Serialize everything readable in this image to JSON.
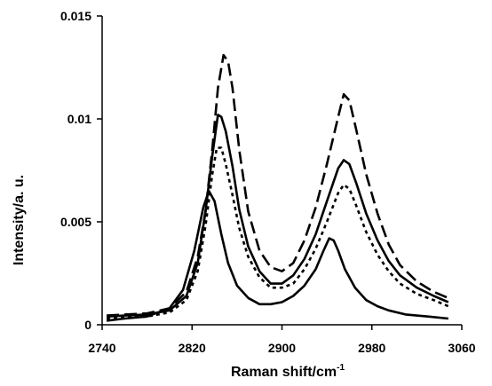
{
  "chart_data": {
    "type": "line",
    "xlabel": "Raman shift/cm",
    "xlabel_superscript": "-1",
    "ylabel": "Intensity/a. u.",
    "xlim": [
      2740,
      3060
    ],
    "ylim": [
      0,
      0.015
    ],
    "x_ticks": [
      "2740",
      "2820",
      "2900",
      "2980",
      "3060"
    ],
    "y_ticks": [
      "0",
      "0.005",
      "0.01",
      "0.015"
    ],
    "grid": false,
    "series": [
      {
        "style": "dashed",
        "points": [
          [
            2744,
            0.00045
          ],
          [
            2760,
            0.0005
          ],
          [
            2780,
            0.00055
          ],
          [
            2800,
            0.0008
          ],
          [
            2815,
            0.0016
          ],
          [
            2825,
            0.0033
          ],
          [
            2832,
            0.0055
          ],
          [
            2838,
            0.0085
          ],
          [
            2843,
            0.0115
          ],
          [
            2848,
            0.0131
          ],
          [
            2852,
            0.0128
          ],
          [
            2856,
            0.0115
          ],
          [
            2862,
            0.0085
          ],
          [
            2870,
            0.0055
          ],
          [
            2880,
            0.0036
          ],
          [
            2890,
            0.0028
          ],
          [
            2900,
            0.0026
          ],
          [
            2910,
            0.003
          ],
          [
            2920,
            0.0041
          ],
          [
            2930,
            0.0057
          ],
          [
            2940,
            0.0078
          ],
          [
            2950,
            0.0101
          ],
          [
            2955,
            0.0112
          ],
          [
            2960,
            0.0109
          ],
          [
            2966,
            0.0095
          ],
          [
            2975,
            0.0073
          ],
          [
            2985,
            0.0054
          ],
          [
            2995,
            0.0039
          ],
          [
            3005,
            0.0029
          ],
          [
            3020,
            0.0021
          ],
          [
            3035,
            0.0016
          ],
          [
            3048,
            0.0013
          ]
        ]
      },
      {
        "style": "solid",
        "points": [
          [
            2744,
            0.0004
          ],
          [
            2760,
            0.00045
          ],
          [
            2780,
            0.0005
          ],
          [
            2800,
            0.0007
          ],
          [
            2815,
            0.0014
          ],
          [
            2825,
            0.003
          ],
          [
            2832,
            0.0055
          ],
          [
            2838,
            0.0082
          ],
          [
            2843,
            0.0102
          ],
          [
            2846,
            0.0101
          ],
          [
            2850,
            0.0094
          ],
          [
            2856,
            0.0077
          ],
          [
            2862,
            0.0056
          ],
          [
            2870,
            0.0038
          ],
          [
            2880,
            0.0026
          ],
          [
            2890,
            0.002
          ],
          [
            2900,
            0.002
          ],
          [
            2910,
            0.0024
          ],
          [
            2920,
            0.0032
          ],
          [
            2930,
            0.0044
          ],
          [
            2940,
            0.006
          ],
          [
            2950,
            0.0076
          ],
          [
            2955,
            0.008
          ],
          [
            2960,
            0.0078
          ],
          [
            2966,
            0.0069
          ],
          [
            2975,
            0.0054
          ],
          [
            2985,
            0.0041
          ],
          [
            2995,
            0.0031
          ],
          [
            3005,
            0.0024
          ],
          [
            3020,
            0.0018
          ],
          [
            3035,
            0.0014
          ],
          [
            3048,
            0.0011
          ]
        ]
      },
      {
        "style": "dotted",
        "points": [
          [
            2744,
            0.0003
          ],
          [
            2760,
            0.00035
          ],
          [
            2780,
            0.0004
          ],
          [
            2800,
            0.0006
          ],
          [
            2815,
            0.0012
          ],
          [
            2825,
            0.0026
          ],
          [
            2832,
            0.0048
          ],
          [
            2838,
            0.0073
          ],
          [
            2842,
            0.0086
          ],
          [
            2846,
            0.0086
          ],
          [
            2850,
            0.0078
          ],
          [
            2856,
            0.0063
          ],
          [
            2862,
            0.0047
          ],
          [
            2870,
            0.0033
          ],
          [
            2880,
            0.0023
          ],
          [
            2890,
            0.0018
          ],
          [
            2900,
            0.0018
          ],
          [
            2910,
            0.002
          ],
          [
            2920,
            0.0027
          ],
          [
            2930,
            0.0037
          ],
          [
            2940,
            0.005
          ],
          [
            2950,
            0.0064
          ],
          [
            2955,
            0.0068
          ],
          [
            2960,
            0.0066
          ],
          [
            2966,
            0.0058
          ],
          [
            2975,
            0.0045
          ],
          [
            2985,
            0.0034
          ],
          [
            2995,
            0.0026
          ],
          [
            3005,
            0.002
          ],
          [
            3020,
            0.0015
          ],
          [
            3035,
            0.0012
          ],
          [
            3048,
            0.0009
          ]
        ]
      },
      {
        "style": "solid",
        "points": [
          [
            2744,
            0.0002
          ],
          [
            2760,
            0.0003
          ],
          [
            2780,
            0.0004
          ],
          [
            2800,
            0.0008
          ],
          [
            2812,
            0.0017
          ],
          [
            2822,
            0.0036
          ],
          [
            2830,
            0.0057
          ],
          [
            2835,
            0.0065
          ],
          [
            2840,
            0.006
          ],
          [
            2846,
            0.0044
          ],
          [
            2852,
            0.003
          ],
          [
            2860,
            0.0019
          ],
          [
            2870,
            0.0013
          ],
          [
            2880,
            0.001
          ],
          [
            2890,
            0.001
          ],
          [
            2900,
            0.0011
          ],
          [
            2910,
            0.0014
          ],
          [
            2920,
            0.0019
          ],
          [
            2930,
            0.0027
          ],
          [
            2937,
            0.0036
          ],
          [
            2942,
            0.0042
          ],
          [
            2946,
            0.0041
          ],
          [
            2950,
            0.0036
          ],
          [
            2956,
            0.0027
          ],
          [
            2965,
            0.0018
          ],
          [
            2975,
            0.0012
          ],
          [
            2985,
            0.0009
          ],
          [
            2995,
            0.0007
          ],
          [
            3010,
            0.0005
          ],
          [
            3030,
            0.0004
          ],
          [
            3048,
            0.0003
          ]
        ]
      }
    ]
  }
}
